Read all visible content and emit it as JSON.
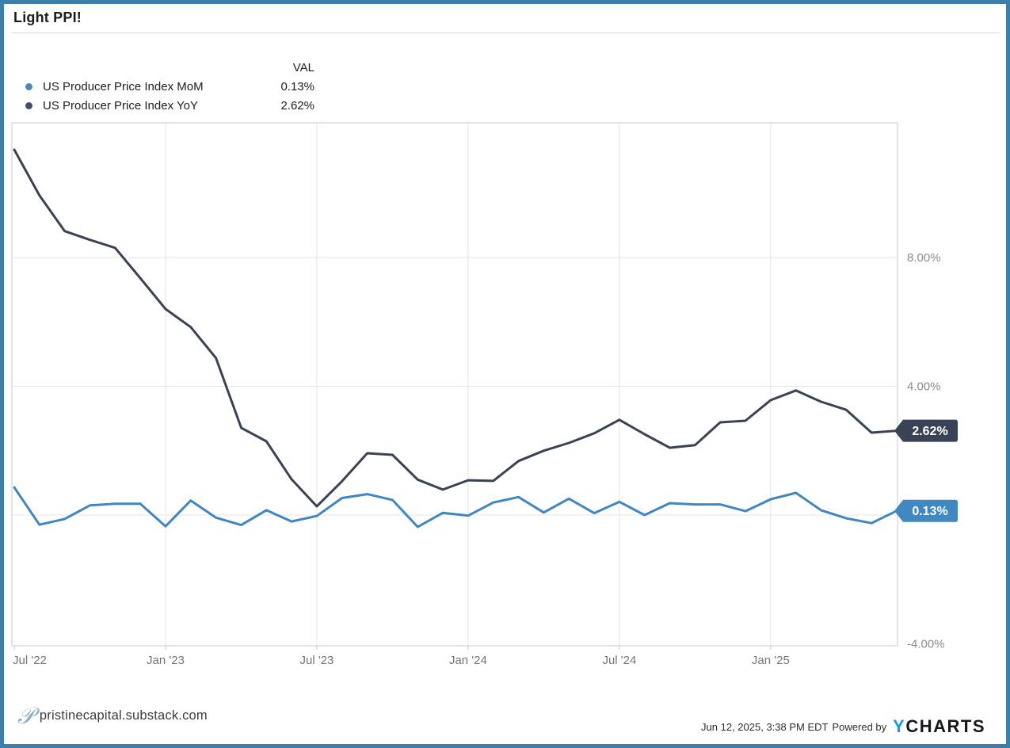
{
  "header": {
    "title": "Light PPI!"
  },
  "legend": {
    "val_header": "VAL",
    "series": [
      {
        "label": "US Producer Price Index MoM",
        "value": "0.13%",
        "dot_color": "#4c87b9"
      },
      {
        "label": "US Producer Price Index YoY",
        "value": "2.62%",
        "dot_color": "#44506b"
      }
    ]
  },
  "chart_data": {
    "type": "line",
    "title": "Light PPI!",
    "x": [
      "Jul '22",
      "Aug '22",
      "Sep '22",
      "Oct '22",
      "Nov '22",
      "Dec '22",
      "Jan '23",
      "Feb '23",
      "Mar '23",
      "Apr '23",
      "May '23",
      "Jun '23",
      "Jul '23",
      "Aug '23",
      "Sep '23",
      "Oct '23",
      "Nov '23",
      "Dec '23",
      "Jan '24",
      "Feb '24",
      "Mar '24",
      "Apr '24",
      "May '24",
      "Jun '24",
      "Jul '24",
      "Aug '24",
      "Sep '24",
      "Oct '24",
      "Nov '24",
      "Dec '24",
      "Jan '25",
      "Feb '25",
      "Mar '25",
      "Apr '25",
      "May '25",
      "Jun '25"
    ],
    "series": [
      {
        "name": "US Producer Price Index MoM",
        "color": "#4186bf",
        "badge_color": "#4187c0",
        "end_label": "0.13%",
        "values": [
          0.86,
          -0.3,
          -0.12,
          0.3,
          0.35,
          0.35,
          -0.35,
          0.45,
          -0.08,
          -0.31,
          0.15,
          -0.2,
          -0.03,
          0.53,
          0.65,
          0.47,
          -0.37,
          0.07,
          -0.02,
          0.39,
          0.56,
          0.08,
          0.51,
          0.06,
          0.41,
          0.0,
          0.37,
          0.33,
          0.33,
          0.12,
          0.49,
          0.69,
          0.15,
          -0.1,
          -0.25,
          0.13
        ]
      },
      {
        "name": "US Producer Price Index YoY",
        "color": "#3a4254",
        "badge_color": "#3a4355",
        "end_label": "2.62%",
        "values": [
          11.35,
          9.93,
          8.82,
          8.55,
          8.3,
          7.36,
          6.4,
          5.84,
          4.88,
          2.71,
          2.29,
          1.11,
          0.27,
          1.05,
          1.92,
          1.87,
          1.1,
          0.79,
          1.08,
          1.06,
          1.68,
          2.0,
          2.24,
          2.54,
          2.96,
          2.51,
          2.09,
          2.17,
          2.88,
          2.93,
          3.57,
          3.87,
          3.52,
          3.27,
          2.56,
          2.62
        ]
      }
    ],
    "xlabel": "",
    "ylabel": "",
    "ylim": [
      -4.26,
      12.18
    ],
    "grid": true,
    "legend_position": "top-left",
    "y_gridlines": [
      8,
      4,
      0
    ],
    "y_ticks": [
      {
        "value": 8,
        "label": "8.00%"
      },
      {
        "value": 4,
        "label": "4.00%"
      },
      {
        "value": -4,
        "label": "-4.00%"
      }
    ],
    "x_tick_indices": [
      0,
      6,
      12,
      18,
      24,
      30
    ],
    "x_tick_labels": [
      "Jul '22",
      "Jan '23",
      "Jul '23",
      "Jan '24",
      "Jul '24",
      "Jan '25"
    ]
  },
  "colors": {
    "frame_border": "#3d7fab",
    "grid_line": "#e5e5e5",
    "plot_border": "#c9c9c9",
    "y_axis_text": "#8b8b8b",
    "x_axis_text": "#757575",
    "badge_text": "#ffffff"
  },
  "footer": {
    "logo_glyph": "𝒫",
    "site": "pristinecapital.substack.com",
    "timestamp": "Jun 12, 2025, 3:38 PM EDT",
    "powered_by": "Powered by",
    "brand_y": "Y",
    "brand_rest": "CHARTS"
  }
}
